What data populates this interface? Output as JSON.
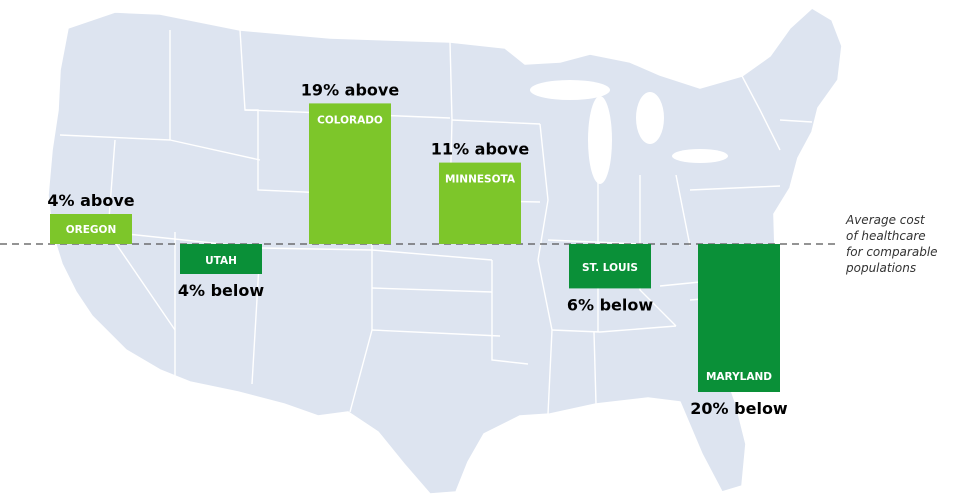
{
  "chart_data": {
    "type": "bar",
    "baseline_label_lines": [
      "Average cost",
      "of healthcare",
      "for comparable",
      "populations"
    ],
    "categories": [
      "OREGON",
      "UTAH",
      "COLORADO",
      "MINNESOTA",
      "ST. LOUIS",
      "MARYLAND"
    ],
    "values": [
      4,
      -4,
      19,
      11,
      -6,
      -20
    ],
    "value_labels": [
      "4% above",
      "4% below",
      "19% above",
      "11% above",
      "6% below",
      "20% below"
    ],
    "unit": "% relative to average",
    "colors": {
      "above": "#7dc62a",
      "below": "#0a9038",
      "map": "#dde4f0",
      "baseline": "#555555"
    }
  }
}
